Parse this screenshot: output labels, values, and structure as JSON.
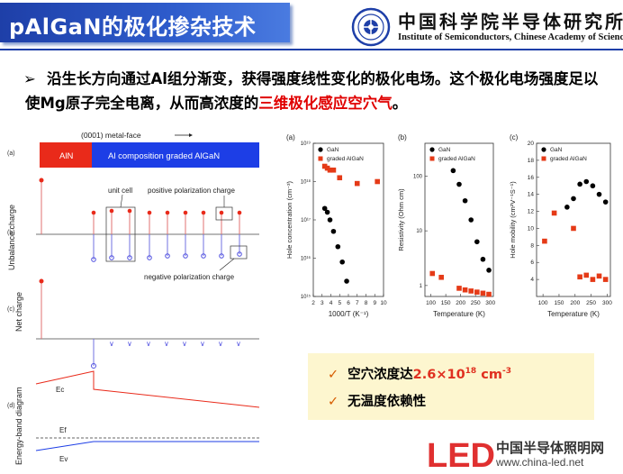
{
  "title": "pAlGaN的极化掺杂技术",
  "institute": {
    "name_cn": "中国科学院半导体研究所",
    "name_en": "Institute of Semiconductors, Chinese Academy of Sciences"
  },
  "bullet": {
    "arrow": "➢",
    "text_part1": "沿生长方向通过Al组分渐变，获得强度线性变化的极化电场。这个极化电场强度足以使Mg原子完全电离，从而高浓度的",
    "text_highlight": "三维极化感应空穴气",
    "text_end": "。"
  },
  "diagram": {
    "face_label": "(0001) metal-face",
    "layer_aln": "AlN",
    "layer_graded": "Al composition graded AlGaN",
    "panel_a": "(a)",
    "panel_b": "(b)",
    "panel_c": "(c)",
    "panel_d": "(d)",
    "ylabel_b": "Unbalance charge",
    "ylabel_c": "Net charge",
    "ylabel_d": "Energy-band diagram",
    "unit_cell": "unit cell",
    "pos_charge": "positive polarization charge",
    "neg_charge": "negative polarization charge",
    "ec": "Ec",
    "ef": "Ef",
    "ev": "Ev"
  },
  "chart_data": [
    {
      "type": "scatter",
      "panel": "(a)",
      "xlabel": "1000/T (K⁻¹)",
      "ylabel": "Hole concentration (cm⁻³)",
      "xlim": [
        2,
        10
      ],
      "ylim_log10": [
        15,
        19
      ],
      "yscale": "log",
      "xticks": [
        2,
        3,
        4,
        5,
        6,
        7,
        8,
        9,
        10
      ],
      "yticks": [
        "10¹⁵",
        "10¹⁶",
        "10¹⁷",
        "10¹⁸",
        "10¹⁹"
      ],
      "legend": "top-right",
      "series": [
        {
          "name": "GaN",
          "color": "#000000",
          "marker": "circle",
          "x": [
            3.3,
            3.6,
            3.9,
            4.3,
            4.8,
            5.3,
            5.8
          ],
          "y_log10": [
            17.3,
            17.2,
            17.0,
            16.7,
            16.3,
            15.9,
            15.4
          ]
        },
        {
          "name": "graded AlGaN",
          "color": "#e53a17",
          "marker": "square",
          "x": [
            3.3,
            3.6,
            3.9,
            4.3,
            5.0,
            7.0,
            9.3
          ],
          "y_log10": [
            18.4,
            18.35,
            18.3,
            18.3,
            18.1,
            17.95,
            18.0
          ]
        }
      ]
    },
    {
      "type": "scatter",
      "panel": "(b)",
      "xlabel": "Temperature (K)",
      "ylabel": "Resistivity (Ohm cm)",
      "xlim": [
        80,
        310
      ],
      "ylim_log10": [
        -0.2,
        2.6
      ],
      "yscale": "log",
      "xticks": [
        100,
        150,
        200,
        250,
        300
      ],
      "yticks": [
        "1",
        "10",
        "100"
      ],
      "legend": "top-right",
      "series": [
        {
          "name": "GaN",
          "color": "#000000",
          "marker": "circle",
          "x": [
            175,
            195,
            215,
            235,
            255,
            275,
            295
          ],
          "y_log10": [
            2.1,
            1.85,
            1.55,
            1.2,
            0.8,
            0.48,
            0.28
          ]
        },
        {
          "name": "graded AlGaN",
          "color": "#e53a17",
          "marker": "square",
          "x": [
            105,
            135,
            195,
            215,
            235,
            255,
            275,
            295
          ],
          "y_log10": [
            0.22,
            0.15,
            -0.05,
            -0.08,
            -0.1,
            -0.12,
            -0.14,
            -0.16
          ]
        }
      ]
    },
    {
      "type": "scatter",
      "panel": "(c)",
      "xlabel": "Temperature (K)",
      "ylabel": "Hole mobility (cm²V⁻¹S⁻¹)",
      "xlim": [
        80,
        310
      ],
      "ylim": [
        2,
        20
      ],
      "xticks": [
        100,
        150,
        200,
        250,
        300
      ],
      "yticks": [
        4,
        6,
        8,
        10,
        12,
        14,
        16,
        18,
        20
      ],
      "legend": "top-right",
      "series": [
        {
          "name": "GaN",
          "color": "#000000",
          "marker": "circle",
          "x": [
            175,
            195,
            215,
            235,
            255,
            275,
            295
          ],
          "y": [
            12.5,
            13.5,
            15.2,
            15.5,
            15.0,
            14.0,
            13.1
          ]
        },
        {
          "name": "graded AlGaN",
          "color": "#e53a17",
          "marker": "square",
          "x": [
            105,
            135,
            195,
            215,
            235,
            255,
            275,
            295
          ],
          "y": [
            8.5,
            11.8,
            10.0,
            4.3,
            4.5,
            4.0,
            4.4,
            4.0
          ]
        }
      ]
    }
  ],
  "summary": {
    "check": "✓",
    "item1_prefix": "空穴浓度达",
    "item1_value": "2.6×10",
    "item1_exp": "18",
    "item1_unit": " cm",
    "item1_unit_exp": "-3",
    "item2": "无温度依赖性"
  },
  "footer": {
    "brand_cn": "中国半导体照明网",
    "url": "www.china-led.net",
    "led_mark": "LED"
  }
}
